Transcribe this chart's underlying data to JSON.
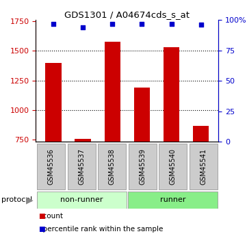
{
  "title": "GDS1301 / A04674cds_s_at",
  "samples": [
    "GSM45536",
    "GSM45537",
    "GSM45538",
    "GSM45539",
    "GSM45540",
    "GSM45541"
  ],
  "counts": [
    1400,
    757,
    1575,
    1190,
    1530,
    870
  ],
  "percentiles": [
    97,
    94,
    97,
    97,
    97,
    96
  ],
  "ylim_left": [
    735,
    1760
  ],
  "ylim_right": [
    0,
    100
  ],
  "yticks_left": [
    750,
    1000,
    1250,
    1500,
    1750
  ],
  "yticks_right": [
    0,
    25,
    50,
    75,
    100
  ],
  "bar_color": "#cc0000",
  "dot_color": "#0000cc",
  "grid_values": [
    1000,
    1250,
    1500
  ],
  "protocol_labels": [
    "non-runner",
    "runner"
  ],
  "protocol_groups": [
    3,
    3
  ],
  "protocol_colors_light": [
    "#ccffcc",
    "#88ee88"
  ],
  "sample_box_color": "#cccccc",
  "bar_width": 0.55,
  "figure_bg": "#ffffff"
}
